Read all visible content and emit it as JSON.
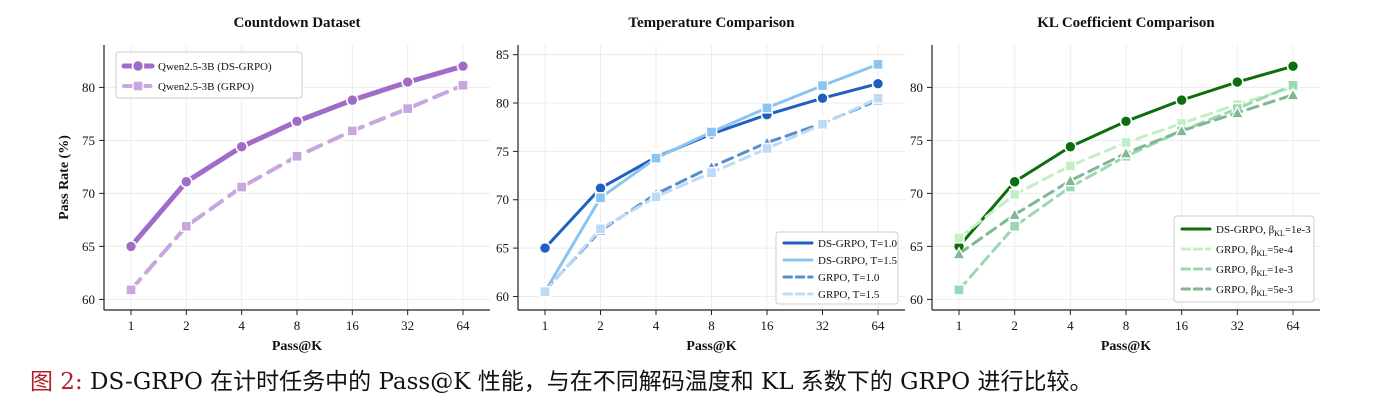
{
  "chart_data": [
    {
      "type": "line",
      "title": "Countdown Dataset",
      "xlabel": "Pass@K",
      "ylabel": "Pass Rate (%)",
      "categories": [
        "1",
        "2",
        "4",
        "8",
        "16",
        "32",
        "64"
      ],
      "ylim": [
        59,
        84
      ],
      "yticks": [
        60,
        65,
        70,
        75,
        80
      ],
      "grid": true,
      "legend_position": "upper-left",
      "series": [
        {
          "name": "Qwen2.5-3B (DS-GRPO)",
          "values": [
            65.0,
            71.1,
            74.4,
            76.8,
            78.8,
            80.5,
            82.0
          ],
          "color": "#a06cc8",
          "style": "solid",
          "marker": "circle",
          "width": 5
        },
        {
          "name": "Qwen2.5-3B (GRPO)",
          "values": [
            60.9,
            66.9,
            70.6,
            73.5,
            75.9,
            78.0,
            80.2
          ],
          "color": "#c7a7de",
          "style": "dashed",
          "marker": "square",
          "width": 4
        }
      ]
    },
    {
      "type": "line",
      "title": "Temperature Comparison",
      "xlabel": "Pass@K",
      "ylabel": "",
      "categories": [
        "1",
        "2",
        "4",
        "8",
        "16",
        "32",
        "64"
      ],
      "ylim": [
        58.6,
        86
      ],
      "yticks": [
        60,
        65,
        70,
        75,
        80,
        85
      ],
      "grid": true,
      "legend_position": "lower-right",
      "series": [
        {
          "name": "DS-GRPO, T=1.0",
          "values": [
            65.0,
            71.2,
            74.4,
            76.8,
            78.8,
            80.5,
            82.0
          ],
          "color": "#1f5fbf",
          "style": "solid",
          "marker": "circle",
          "width": 3
        },
        {
          "name": "DS-GRPO, T=1.5",
          "values": [
            60.5,
            70.2,
            74.3,
            77.0,
            79.5,
            81.8,
            84.0
          ],
          "color": "#8cc4f0",
          "style": "solid",
          "marker": "square",
          "width": 3
        },
        {
          "name": "GRPO, T=1.0",
          "values": [
            60.6,
            66.8,
            70.6,
            73.4,
            75.9,
            77.9,
            80.3
          ],
          "color": "#5a8fcc",
          "style": "dashed",
          "marker": "triangle",
          "width": 3
        },
        {
          "name": "GRPO, T=1.5",
          "values": [
            60.5,
            67.0,
            70.3,
            72.8,
            75.3,
            77.8,
            80.5
          ],
          "color": "#bcdcf5",
          "style": "dashed",
          "marker": "square",
          "width": 3
        }
      ]
    },
    {
      "type": "line",
      "title": "KL Coefficient Comparison",
      "xlabel": "Pass@K",
      "ylabel": "",
      "categories": [
        "1",
        "2",
        "4",
        "8",
        "16",
        "32",
        "64"
      ],
      "ylim": [
        59,
        84
      ],
      "yticks": [
        60,
        65,
        70,
        75,
        80
      ],
      "grid": true,
      "legend_position": "lower-right",
      "series": [
        {
          "name": "DS-GRPO, β",
          "sub": "KL",
          "suffix": "=1e-3",
          "values": [
            65.0,
            71.1,
            74.4,
            76.8,
            78.8,
            80.5,
            82.0
          ],
          "color": "#0d6e0d",
          "style": "solid",
          "marker": "circle",
          "width": 3
        },
        {
          "name": "GRPO, β",
          "sub": "KL",
          "suffix": "=5e-4",
          "values": [
            65.8,
            69.9,
            72.6,
            74.8,
            76.6,
            78.4,
            80.0
          ],
          "color": "#c4efc4",
          "style": "dashed",
          "marker": "square",
          "width": 3
        },
        {
          "name": "GRPO, β",
          "sub": "KL",
          "suffix": "=1e-3",
          "values": [
            60.9,
            66.9,
            70.6,
            73.5,
            75.9,
            78.0,
            80.2
          ],
          "color": "#9ad8b4",
          "style": "dashed",
          "marker": "square",
          "width": 3
        },
        {
          "name": "GRPO, β",
          "sub": "KL",
          "suffix": "=5e-3",
          "values": [
            64.3,
            68.0,
            71.2,
            73.8,
            75.9,
            77.6,
            79.3
          ],
          "color": "#7fb891",
          "style": "dashed",
          "marker": "triangle",
          "width": 3
        }
      ]
    }
  ],
  "caption": {
    "label": "图 2:",
    "text": "DS-GRPO 在计时任务中的 Pass@K 性能，与在不同解码温度和 KL 系数下的 GRPO 进行比较。"
  }
}
